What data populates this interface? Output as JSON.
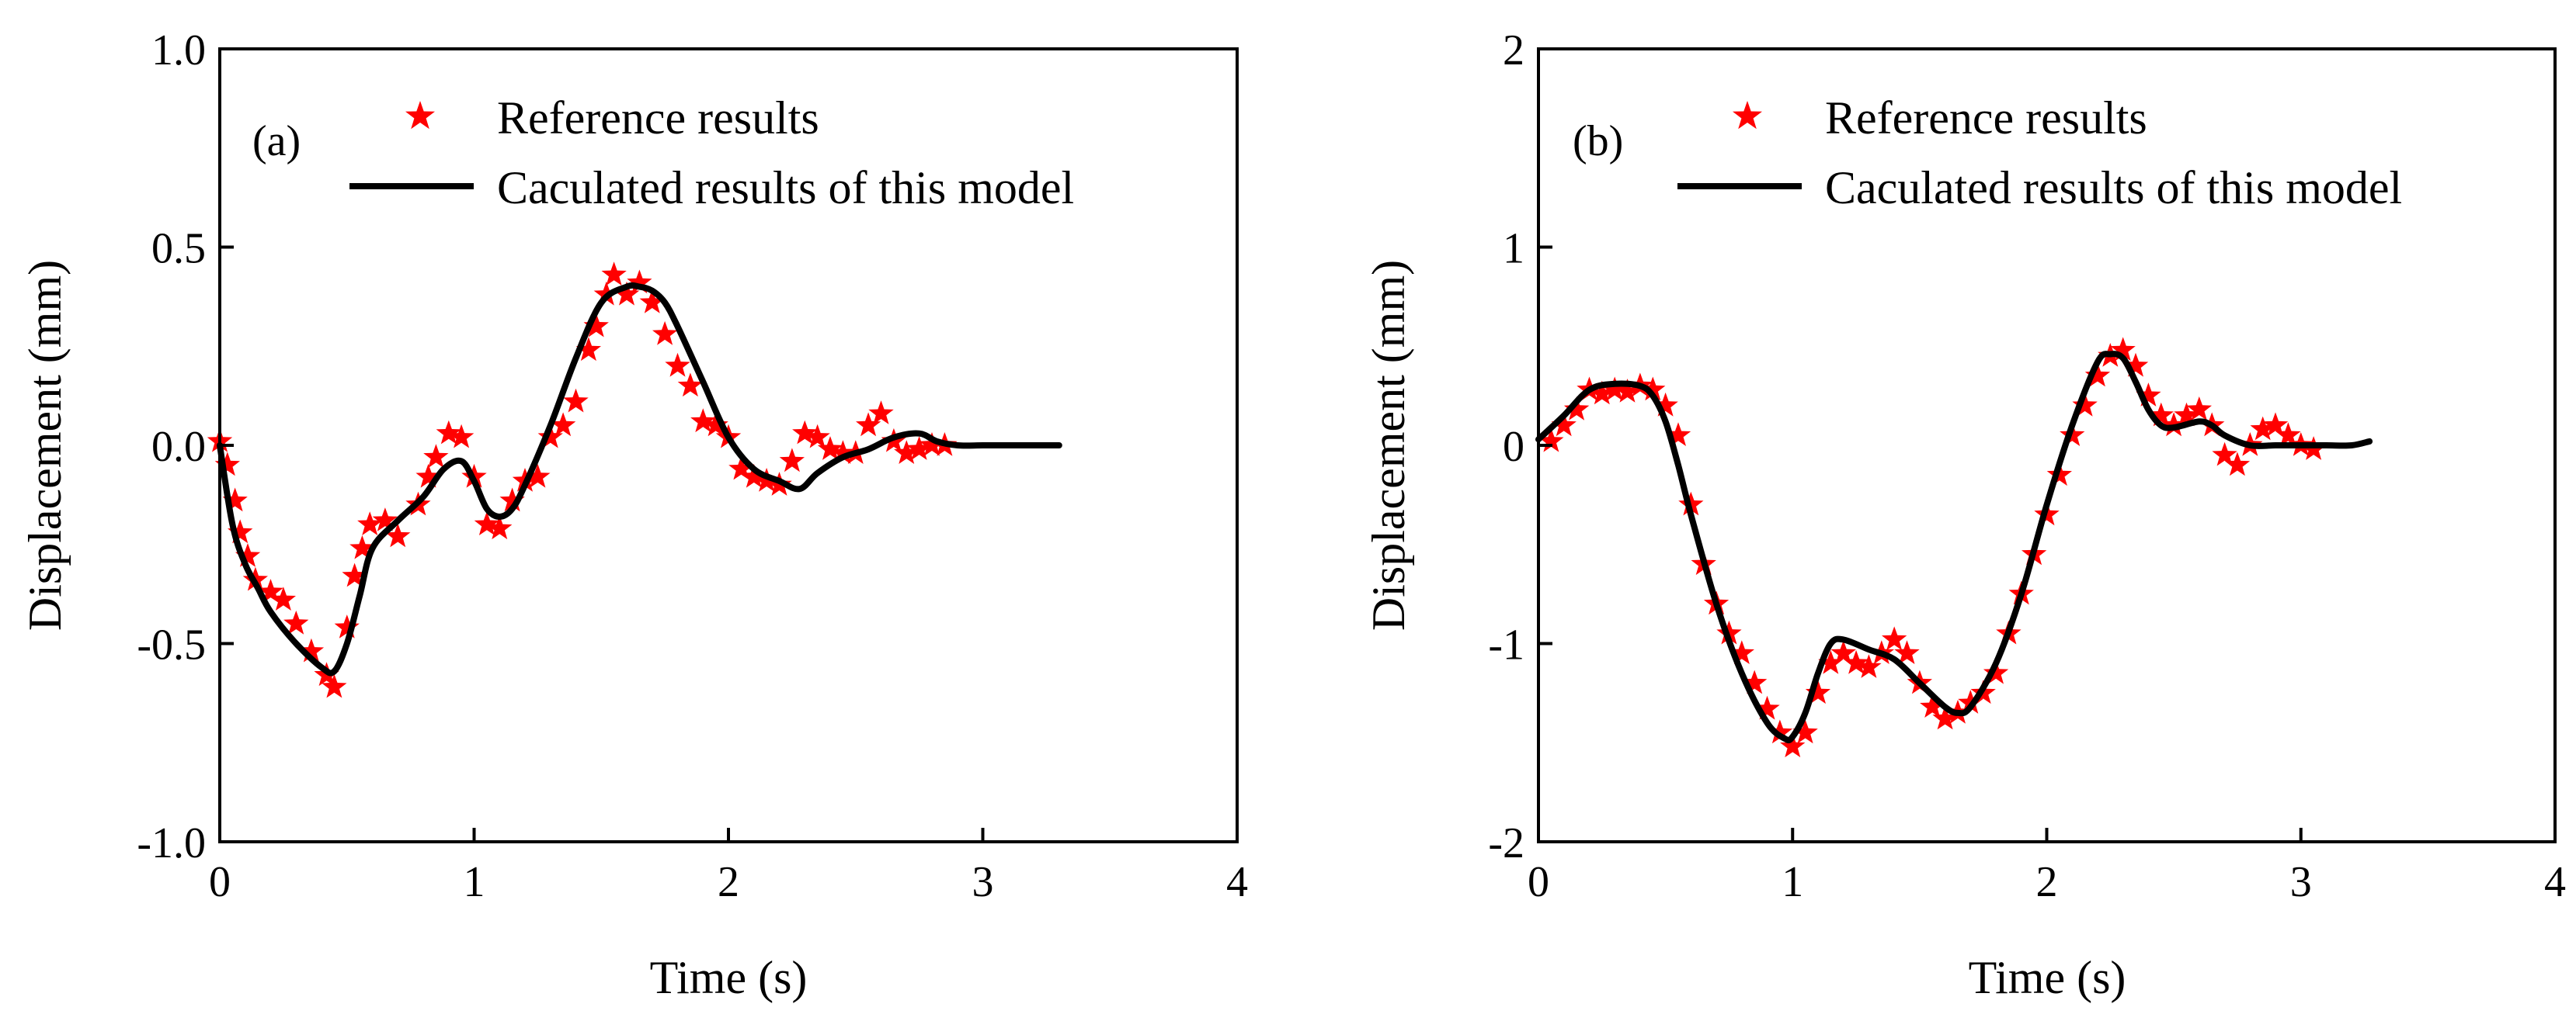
{
  "chart_data": [
    {
      "type": "line",
      "panel_label": "(a)",
      "xlabel": "Time (s)",
      "ylabel": "Displacement (mm)",
      "xlim": [
        0,
        4
      ],
      "ylim": [
        -1.0,
        1.0
      ],
      "xticks": [
        0,
        1,
        2,
        3,
        4
      ],
      "xtick_labels": [
        "0",
        "1",
        "2",
        "3",
        "4"
      ],
      "yticks": [
        -1.0,
        -0.5,
        0.0,
        0.5,
        1.0
      ],
      "ytick_labels": [
        "-1.0",
        "-0.5",
        "0.0",
        "0.5",
        "1.0"
      ],
      "grid": false,
      "legend_position": "top-right",
      "series": [
        {
          "name": "Reference results",
          "style": "marker-star",
          "color": "#ff0000",
          "x": [
            0.0,
            0.03,
            0.06,
            0.08,
            0.11,
            0.14,
            0.2,
            0.25,
            0.3,
            0.36,
            0.42,
            0.45,
            0.5,
            0.53,
            0.56,
            0.59,
            0.65,
            0.7,
            0.78,
            0.82,
            0.85,
            0.9,
            0.95,
            1.0,
            1.05,
            1.1,
            1.15,
            1.2,
            1.25,
            1.3,
            1.35,
            1.4,
            1.45,
            1.48,
            1.52,
            1.55,
            1.6,
            1.65,
            1.7,
            1.75,
            1.8,
            1.85,
            1.9,
            1.95,
            2.0,
            2.05,
            2.1,
            2.15,
            2.2,
            2.25,
            2.3,
            2.35,
            2.4,
            2.45,
            2.5,
            2.55,
            2.6,
            2.65,
            2.7,
            2.75,
            2.8,
            2.85
          ],
          "y": [
            0.01,
            -0.05,
            -0.14,
            -0.22,
            -0.28,
            -0.34,
            -0.37,
            -0.39,
            -0.45,
            -0.52,
            -0.58,
            -0.61,
            -0.46,
            -0.33,
            -0.26,
            -0.2,
            -0.19,
            -0.23,
            -0.15,
            -0.08,
            -0.03,
            0.03,
            0.02,
            -0.08,
            -0.2,
            -0.21,
            -0.14,
            -0.09,
            -0.08,
            0.02,
            0.05,
            0.11,
            0.24,
            0.3,
            0.38,
            0.43,
            0.38,
            0.41,
            0.36,
            0.28,
            0.2,
            0.15,
            0.06,
            0.05,
            0.02,
            -0.06,
            -0.08,
            -0.09,
            -0.1,
            -0.04,
            0.03,
            0.02,
            -0.01,
            -0.02,
            -0.02,
            0.05,
            0.08,
            0.01,
            -0.02,
            -0.01,
            0.0,
            0.0
          ]
        },
        {
          "name": "Caculated results of this model",
          "style": "line",
          "color": "#000000",
          "x": [
            0.0,
            0.05,
            0.1,
            0.15,
            0.2,
            0.3,
            0.4,
            0.45,
            0.5,
            0.55,
            0.6,
            0.7,
            0.8,
            0.88,
            0.95,
            1.0,
            1.05,
            1.1,
            1.15,
            1.2,
            1.3,
            1.4,
            1.5,
            1.6,
            1.65,
            1.7,
            1.75,
            1.8,
            1.9,
            2.0,
            2.1,
            2.2,
            2.28,
            2.35,
            2.45,
            2.55,
            2.65,
            2.75,
            2.82,
            2.9,
            3.0,
            3.1,
            3.2,
            3.3
          ],
          "y": [
            0.0,
            -0.2,
            -0.3,
            -0.36,
            -0.42,
            -0.5,
            -0.56,
            -0.57,
            -0.5,
            -0.38,
            -0.26,
            -0.19,
            -0.13,
            -0.06,
            -0.04,
            -0.09,
            -0.16,
            -0.18,
            -0.16,
            -0.1,
            0.05,
            0.22,
            0.36,
            0.4,
            0.4,
            0.39,
            0.36,
            0.3,
            0.16,
            0.02,
            -0.06,
            -0.09,
            -0.11,
            -0.07,
            -0.03,
            -0.01,
            0.02,
            0.03,
            0.01,
            0.0,
            0.0,
            0.0,
            0.0,
            0.0
          ]
        }
      ]
    },
    {
      "type": "line",
      "panel_label": "(b)",
      "xlabel": "Time (s)",
      "ylabel": "Displacement (mm)",
      "xlim": [
        0,
        4
      ],
      "ylim": [
        -2,
        2
      ],
      "xticks": [
        0,
        1,
        2,
        3,
        4
      ],
      "xtick_labels": [
        "0",
        "1",
        "2",
        "3",
        "4"
      ],
      "yticks": [
        -2,
        -1,
        0,
        1,
        2
      ],
      "ytick_labels": [
        "-2",
        "-1",
        "0",
        "1",
        "2"
      ],
      "grid": false,
      "legend_position": "top-right",
      "series": [
        {
          "name": "Reference results",
          "style": "marker-star",
          "color": "#ff0000",
          "x": [
            0.05,
            0.1,
            0.15,
            0.2,
            0.25,
            0.3,
            0.35,
            0.4,
            0.45,
            0.5,
            0.55,
            0.6,
            0.65,
            0.7,
            0.75,
            0.8,
            0.85,
            0.9,
            0.95,
            1.0,
            1.05,
            1.1,
            1.15,
            1.2,
            1.25,
            1.3,
            1.35,
            1.4,
            1.45,
            1.5,
            1.55,
            1.6,
            1.65,
            1.7,
            1.75,
            1.8,
            1.85,
            1.9,
            1.95,
            2.0,
            2.05,
            2.1,
            2.15,
            2.2,
            2.25,
            2.3,
            2.35,
            2.4,
            2.45,
            2.5,
            2.55,
            2.6,
            2.65,
            2.7,
            2.75,
            2.8,
            2.85,
            2.9,
            2.95,
            3.0,
            3.05
          ],
          "y": [
            0.02,
            0.1,
            0.18,
            0.28,
            0.26,
            0.28,
            0.27,
            0.3,
            0.28,
            0.2,
            0.05,
            -0.3,
            -0.6,
            -0.8,
            -0.95,
            -1.05,
            -1.2,
            -1.33,
            -1.45,
            -1.52,
            -1.45,
            -1.25,
            -1.1,
            -1.05,
            -1.1,
            -1.12,
            -1.05,
            -0.98,
            -1.05,
            -1.2,
            -1.32,
            -1.38,
            -1.35,
            -1.3,
            -1.25,
            -1.15,
            -0.95,
            -0.75,
            -0.55,
            -0.35,
            -0.15,
            0.05,
            0.2,
            0.35,
            0.45,
            0.48,
            0.4,
            0.25,
            0.15,
            0.1,
            0.15,
            0.18,
            0.1,
            -0.05,
            -0.1,
            0.0,
            0.08,
            0.1,
            0.05,
            0.0,
            -0.02
          ]
        },
        {
          "name": "Caculated results of this model",
          "style": "line",
          "color": "#000000",
          "x": [
            0.0,
            0.1,
            0.2,
            0.3,
            0.4,
            0.45,
            0.5,
            0.55,
            0.6,
            0.7,
            0.8,
            0.9,
            0.97,
            1.0,
            1.05,
            1.1,
            1.15,
            1.2,
            1.3,
            1.4,
            1.5,
            1.6,
            1.65,
            1.7,
            1.8,
            1.9,
            2.0,
            2.1,
            2.2,
            2.25,
            2.3,
            2.35,
            2.4,
            2.45,
            2.5,
            2.6,
            2.65,
            2.7,
            2.8,
            2.9,
            3.0,
            3.1,
            3.2,
            3.27
          ],
          "y": [
            0.03,
            0.15,
            0.28,
            0.31,
            0.3,
            0.25,
            0.12,
            -0.1,
            -0.35,
            -0.8,
            -1.15,
            -1.4,
            -1.48,
            -1.47,
            -1.35,
            -1.15,
            -1.0,
            -0.98,
            -1.03,
            -1.08,
            -1.2,
            -1.32,
            -1.35,
            -1.32,
            -1.1,
            -0.75,
            -0.3,
            0.1,
            0.42,
            0.46,
            0.44,
            0.32,
            0.18,
            0.1,
            0.09,
            0.12,
            0.1,
            0.05,
            0.0,
            0.0,
            0.0,
            0.0,
            0.0,
            0.02
          ]
        }
      ]
    }
  ]
}
